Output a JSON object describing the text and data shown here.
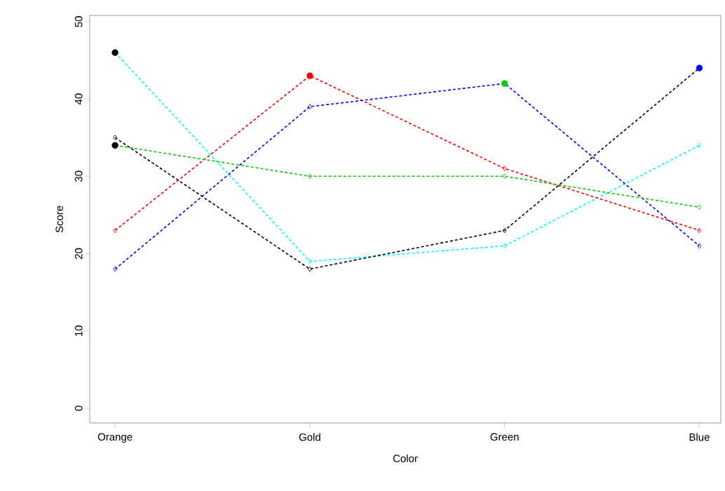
{
  "chart_data": {
    "type": "line",
    "xlabel": "Color",
    "ylabel": "Score",
    "categories": [
      "Orange",
      "Gold",
      "Green",
      "Blue"
    ],
    "ylim": [
      -1.9,
      50.8
    ],
    "yticks": [
      0,
      10,
      20,
      30,
      40,
      50
    ],
    "line_style": "dashed",
    "marker": "diamond",
    "series": [
      {
        "color": "#00ffff",
        "values": [
          46,
          19,
          21,
          34
        ]
      },
      {
        "color": "#ff0000",
        "values": [
          23,
          43,
          31,
          23
        ]
      },
      {
        "color": "#0000ff",
        "values": [
          18,
          39,
          42,
          21
        ]
      },
      {
        "color": "#00cd00",
        "values": [
          34,
          30,
          30,
          26
        ]
      },
      {
        "color": "#000000",
        "values": [
          35,
          18,
          23,
          44
        ]
      },
      {
        "type": "scatter",
        "marker": "circle",
        "x": [
          "Orange",
          "Orange",
          "Gold",
          "Green",
          "Blue"
        ],
        "values": [
          46,
          34,
          43,
          42,
          44
        ],
        "colors": [
          "#000000",
          "#000000",
          "#ff0000",
          "#00cd00",
          "#0000ff"
        ]
      }
    ]
  }
}
